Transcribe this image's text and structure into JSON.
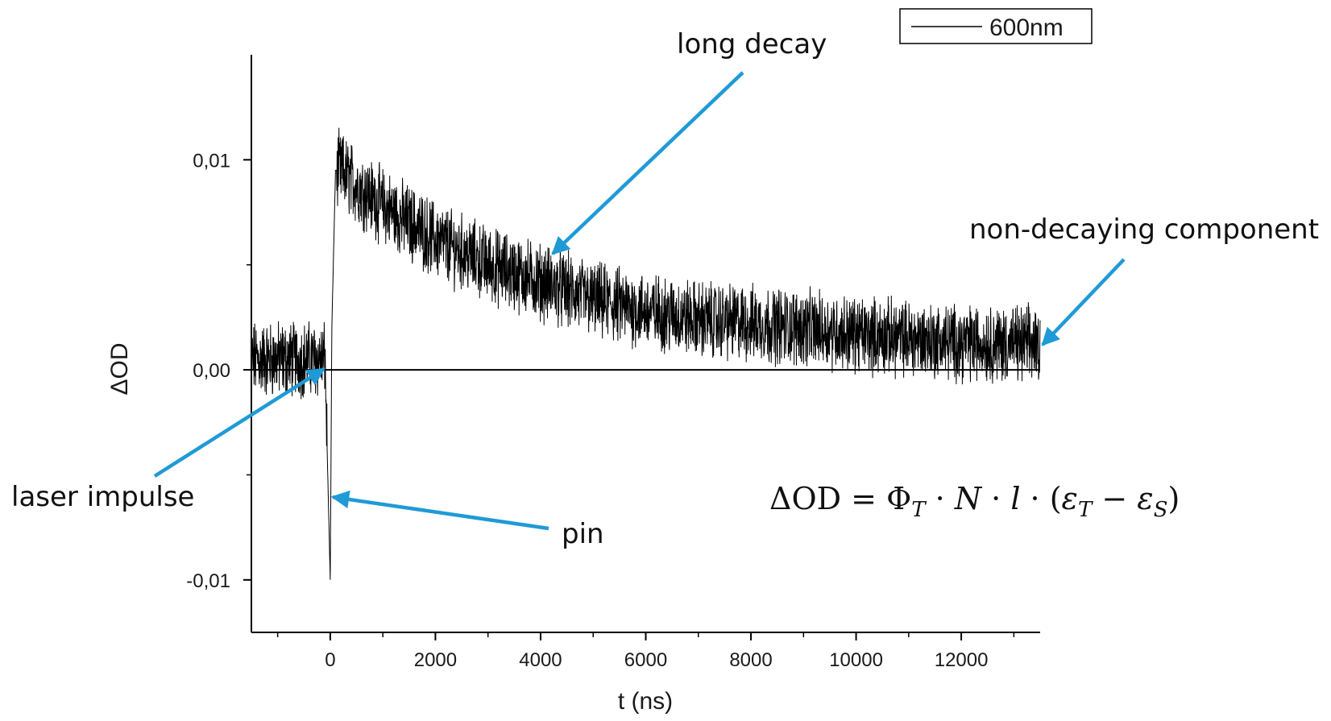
{
  "chart_data": {
    "type": "line",
    "xlabel": "t (ns)",
    "ylabel": "ΔOD",
    "xlim": [
      -1500,
      13500
    ],
    "ylim": [
      -0.0125,
      0.015
    ],
    "x_ticks": [
      0,
      2000,
      4000,
      6000,
      8000,
      10000,
      12000
    ],
    "x_tick_labels": [
      "0",
      "2000",
      "4000",
      "6000",
      "8000",
      "10000",
      "12000"
    ],
    "y_ticks": [
      -0.01,
      0.0,
      0.01
    ],
    "y_tick_labels": [
      "-0,01",
      "0,00",
      "0,01"
    ],
    "grid": false,
    "legend": {
      "position": "top-right",
      "entries": [
        "600nm"
      ]
    },
    "series": [
      {
        "name": "600nm",
        "color": "#000000",
        "noisy": true,
        "points": [
          [
            -1500,
            0.0005
          ],
          [
            -1000,
            0.0005
          ],
          [
            -500,
            0.0005
          ],
          [
            -100,
            0.0005
          ],
          [
            0,
            -0.01
          ],
          [
            30,
            0.002
          ],
          [
            100,
            0.0095
          ],
          [
            200,
            0.0095
          ],
          [
            500,
            0.0088
          ],
          [
            1000,
            0.0078
          ],
          [
            2000,
            0.0062
          ],
          [
            3000,
            0.005
          ],
          [
            4000,
            0.0042
          ],
          [
            5000,
            0.0033
          ],
          [
            6000,
            0.0028
          ],
          [
            7000,
            0.0024
          ],
          [
            8000,
            0.0022
          ],
          [
            9000,
            0.002
          ],
          [
            10000,
            0.0017
          ],
          [
            11000,
            0.0015
          ],
          [
            12000,
            0.0013
          ],
          [
            13500,
            0.0012
          ]
        ]
      }
    ],
    "reference_lines": [
      {
        "y": 0
      }
    ],
    "annotations": [
      {
        "text": "long decay",
        "points_to": [
          4200,
          0.0054
        ]
      },
      {
        "text": "non-decaying component",
        "points_to": [
          13500,
          0.0011
        ]
      },
      {
        "text": "laser impulse",
        "points_to": [
          -50,
          0.0001
        ]
      },
      {
        "text": "pin",
        "points_to": [
          0,
          -0.006
        ]
      }
    ],
    "formula": "ΔOD = Φ_T · N · l · (ε_T − ε_S)"
  },
  "formula_parts": {
    "lhs": "ΔOD",
    "eq": " = ",
    "phi": "Φ",
    "sub_t1": "T",
    "dot": " · ",
    "n": "N",
    "l": "l",
    "open": "(",
    "eps_t": "ε",
    "sub_t2": "T",
    "minus": " − ",
    "eps_s": "ε",
    "sub_s": "S",
    "close": ")"
  },
  "colors": {
    "arrow": "#1f9ad6",
    "data": "#000000",
    "axis": "#000000"
  }
}
